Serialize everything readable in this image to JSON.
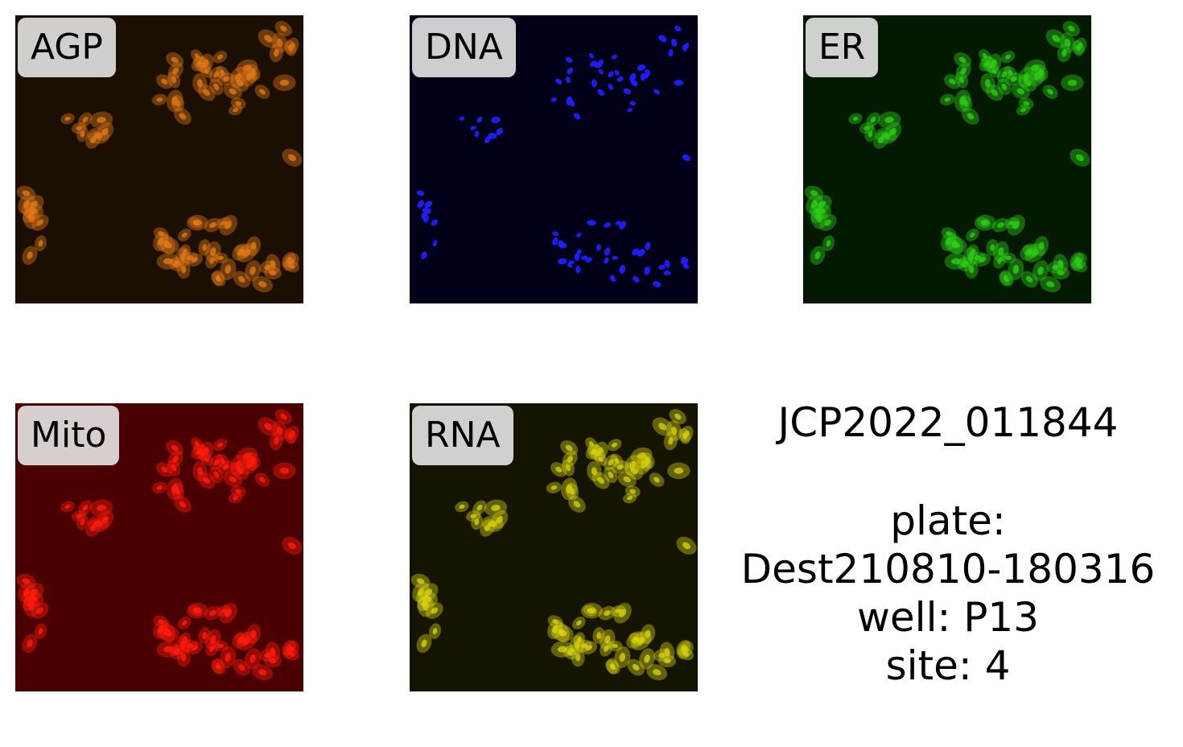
{
  "panels": [
    {
      "label": "AGP",
      "background": "#1a0f00",
      "color": "#e07818"
    },
    {
      "label": "DNA",
      "background": "#000018",
      "color": "#1e1eff"
    },
    {
      "label": "ER",
      "background": "#041a00",
      "color": "#2ecc18"
    },
    {
      "label": "Mito",
      "background": "#4a0000",
      "color": "#ff1c0c"
    },
    {
      "label": "RNA",
      "background": "#141400",
      "color": "#d4d010"
    }
  ],
  "info": {
    "compound": "JCP2022_011844",
    "plate_label": "plate:",
    "plate_value": "Dest210810-180316",
    "well": "well: P13",
    "site": "site: 4"
  }
}
